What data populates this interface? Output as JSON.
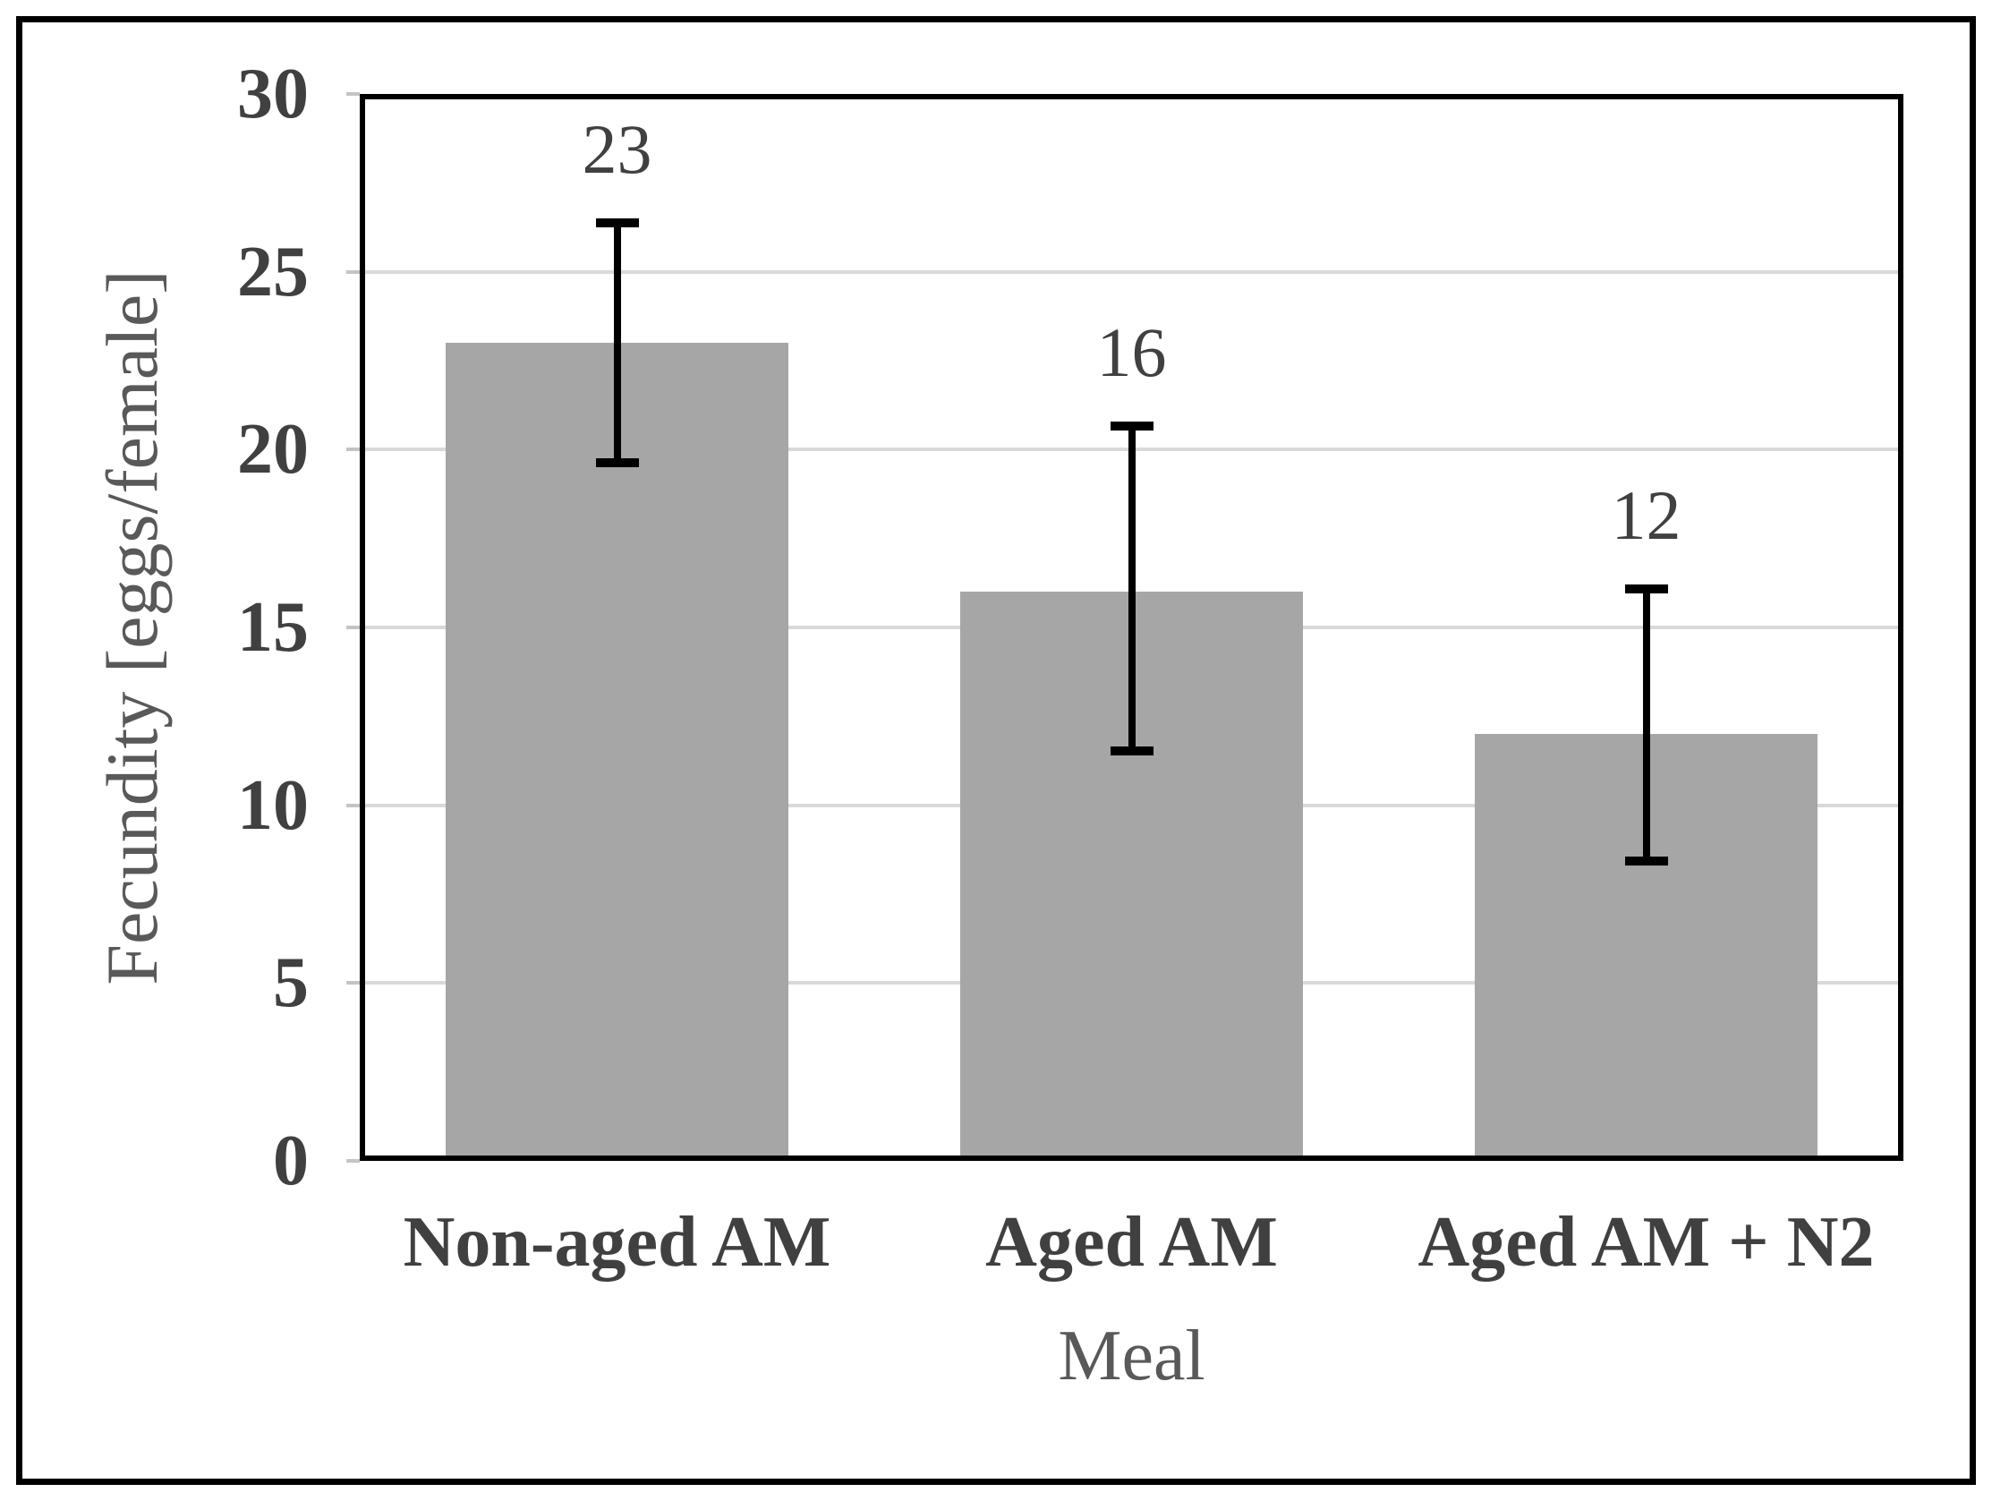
{
  "chart_data": {
    "type": "bar",
    "title": "",
    "categories": [
      "Non-aged AM",
      "Aged AM",
      "Aged AM + N2"
    ],
    "values": [
      23,
      16,
      12
    ],
    "data_labels": [
      "23",
      "16",
      "12"
    ],
    "error_low": [
      19.5,
      11.4,
      8.3
    ],
    "error_high": [
      26.5,
      20.8,
      16.2
    ],
    "xlabel": "Meal",
    "ylabel": "Fecundity [eggs/female]",
    "ylim": [
      0,
      30
    ],
    "yticks": [
      0,
      5,
      10,
      15,
      20,
      25,
      30
    ],
    "ytick_labels": [
      "0",
      "5",
      "10",
      "15",
      "20",
      "25",
      "30"
    ],
    "grid": "horizontal",
    "legend": false
  },
  "colors": {
    "bar_fill": "#a6a6a6",
    "gridline": "#d9d9d9",
    "tick_mark": "#c4c4c4",
    "axis_frame": "#000000",
    "figure_border": "#000000",
    "error_bar": "#000000",
    "tick_text": "#404040",
    "category_text": "#404040",
    "data_label_text": "#404040",
    "axis_title_text": "#595959",
    "background": "#ffffff"
  }
}
